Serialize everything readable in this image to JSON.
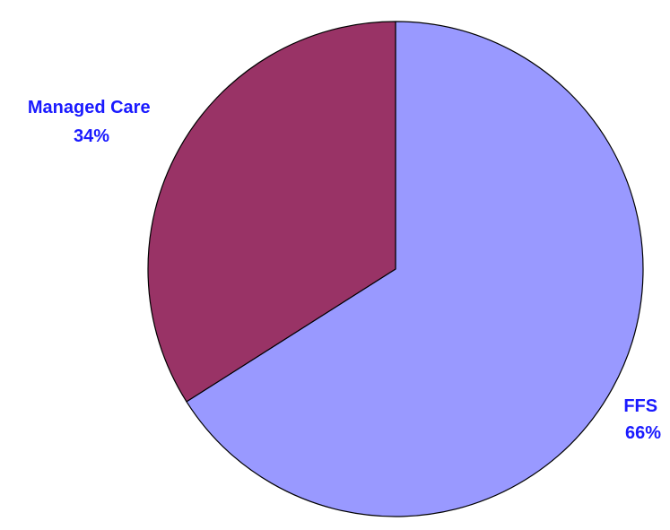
{
  "chart_data": {
    "type": "pie",
    "title": "",
    "start_angle_deg": 0,
    "direction": "clockwise",
    "legend": "none",
    "label_color": "#1a1aff",
    "edge_color": "#000000",
    "slices": [
      {
        "name": "FFS",
        "value": 66,
        "percent_label": "66%",
        "color": "#9999ff"
      },
      {
        "name": "Managed Care",
        "value": 34,
        "percent_label": "34%",
        "color": "#993366"
      }
    ]
  }
}
